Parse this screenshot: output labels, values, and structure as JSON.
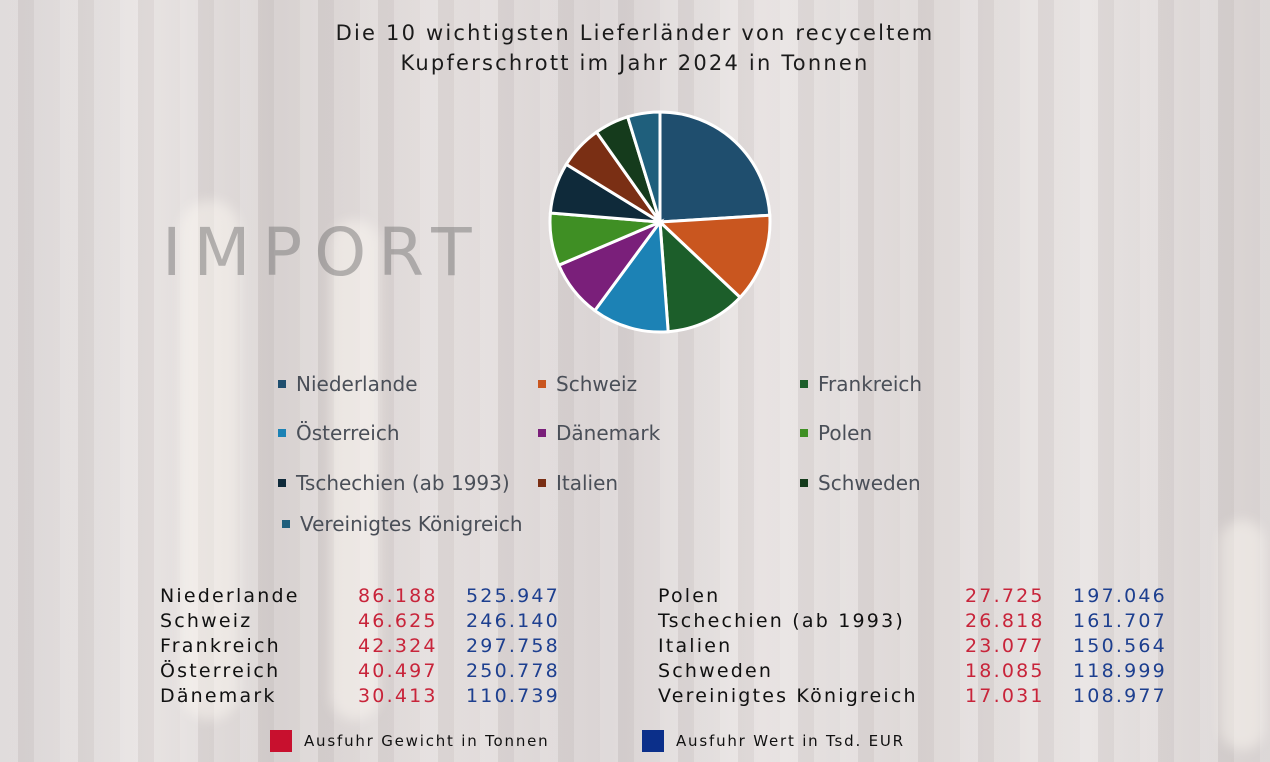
{
  "header": {
    "title_line1": "Die 10 wichtigsten Lieferländer von recyceltem",
    "title_line2": "Kupferschrott im Jahr 2024 in Tonnen"
  },
  "watermark": "IMPORT",
  "chart_data": {
    "type": "pie",
    "title": "Die 10 wichtigsten Lieferländer von recyceltem Kupferschrott im Jahr 2024 in Tonnen",
    "categories": [
      "Niederlande",
      "Schweiz",
      "Frankreich",
      "Österreich",
      "Dänemark",
      "Polen",
      "Tschechien (ab 1993)",
      "Italien",
      "Schweden",
      "Vereinigtes Königreich"
    ],
    "values": [
      86.188,
      46.625,
      42.324,
      40.497,
      30.413,
      27.725,
      26.818,
      23.077,
      18.085,
      17.031
    ],
    "colors": [
      "#1f4e6e",
      "#c9561f",
      "#1c5e2a",
      "#1c82b5",
      "#7a1f7a",
      "#3f8f24",
      "#0f2a3a",
      "#7a2f14",
      "#153b1c",
      "#1f5f7c"
    ],
    "legend_position": "bottom"
  },
  "legend": {
    "items": [
      {
        "label": "Niederlande",
        "color": "#1f4e6e"
      },
      {
        "label": "Schweiz",
        "color": "#c9561f"
      },
      {
        "label": "Frankreich",
        "color": "#1c5e2a"
      },
      {
        "label": "Österreich",
        "color": "#1c82b5"
      },
      {
        "label": "Dänemark",
        "color": "#7a1f7a"
      },
      {
        "label": "Polen",
        "color": "#3f8f24"
      },
      {
        "label": "Tschechien (ab 1993)",
        "color": "#0f2a3a"
      },
      {
        "label": "Italien",
        "color": "#7a2f14"
      },
      {
        "label": "Schweden",
        "color": "#153b1c"
      },
      {
        "label": "Vereinigtes Königreich",
        "color": "#1f5f7c"
      }
    ]
  },
  "table": {
    "left": [
      {
        "country": "Niederlande",
        "weight": "86.188",
        "value": "525.947"
      },
      {
        "country": "Schweiz",
        "weight": "46.625",
        "value": "246.140"
      },
      {
        "country": "Frankreich",
        "weight": "42.324",
        "value": "297.758"
      },
      {
        "country": "Österreich",
        "weight": "40.497",
        "value": "250.778"
      },
      {
        "country": "Dänemark",
        "weight": "30.413",
        "value": "110.739"
      }
    ],
    "right": [
      {
        "country": "Polen",
        "weight": "27.725",
        "value": "197.046"
      },
      {
        "country": "Tschechien (ab 1993)",
        "weight": "26.818",
        "value": "161.707"
      },
      {
        "country": "Italien",
        "weight": "23.077",
        "value": "150.564"
      },
      {
        "country": "Schweden",
        "weight": "18.085",
        "value": "118.999"
      },
      {
        "country": "Vereinigtes Königreich",
        "weight": "17.031",
        "value": "108.977"
      }
    ]
  },
  "keys": {
    "weight_label": "Ausfuhr Gewicht in Tonnen",
    "weight_color": "#c8102e",
    "value_label": "Ausfuhr Wert in Tsd. EUR",
    "value_color": "#0b2f8a"
  }
}
